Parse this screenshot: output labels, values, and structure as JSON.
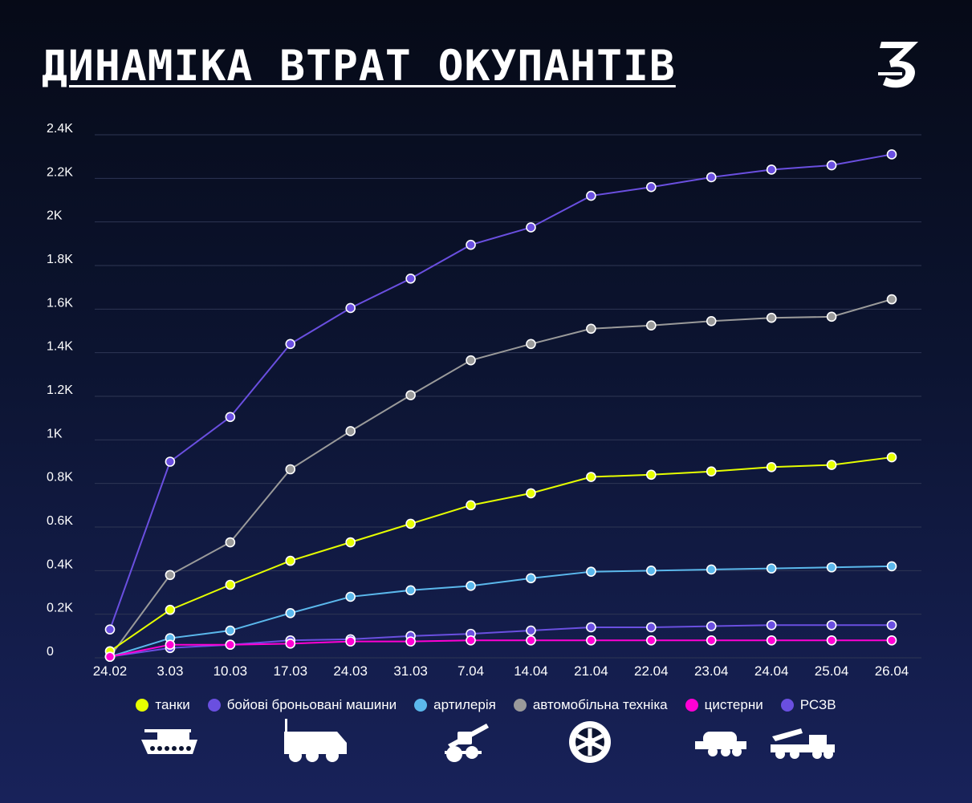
{
  "header": {
    "title": "ДИНАМІКА ВТРАТ ОКУПАНТІВ",
    "logo_icon": "logo-3-icon"
  },
  "colors": {
    "tanks": "#e6ff00",
    "afv": "#6a4fe0",
    "artillery": "#5bb8ec",
    "vehicles": "#9a9a9a",
    "tankers": "#ff00d4",
    "mlrs": "#6a4fe0",
    "grid": "#2e3654"
  },
  "legend": {
    "items": [
      {
        "label": "танки",
        "color": "#e6ff00"
      },
      {
        "label": "бойові броньовані машини",
        "color": "#6a4fe0"
      },
      {
        "label": "артилерія",
        "color": "#5bb8ec"
      },
      {
        "label": "автомобільна техніка",
        "color": "#9a9a9a"
      },
      {
        "label": "цистерни",
        "color": "#ff00d4"
      },
      {
        "label": "РСЗВ",
        "color": "#6a4fe0"
      }
    ]
  },
  "icons": [
    "tank-icon",
    "armored-vehicle-icon",
    "artillery-icon",
    "wheel-icon",
    "tanker-truck-icon",
    "mlrs-icon"
  ],
  "chart_data": {
    "type": "line",
    "categories": [
      "24.02",
      "3.03",
      "10.03",
      "17.03",
      "24.03",
      "31.03",
      "7.04",
      "14.04",
      "21.04",
      "22.04",
      "23.04",
      "24.04",
      "25.04",
      "26.04"
    ],
    "ylim": [
      0,
      2400
    ],
    "yticks": [
      0,
      200,
      400,
      600,
      800,
      1000,
      1200,
      1400,
      1600,
      1800,
      2000,
      2200,
      2400
    ],
    "ytick_labels": [
      "0",
      "0.2K",
      "0.4K",
      "0.6K",
      "0.8K",
      "1K",
      "1.2K",
      "1.4K",
      "1.6K",
      "1.8K",
      "2K",
      "2.2K",
      "2.4K"
    ],
    "grid": true,
    "legend_position": "bottom",
    "series": [
      {
        "name": "бойові броньовані машини",
        "color": "#6a4fe0",
        "values": [
          130,
          900,
          1105,
          1440,
          1605,
          1740,
          1895,
          1975,
          2120,
          2160,
          2205,
          2240,
          2260,
          2310
        ]
      },
      {
        "name": "автомобільна техніка",
        "color": "#9a9a9a",
        "values": [
          5,
          380,
          530,
          865,
          1040,
          1205,
          1365,
          1440,
          1510,
          1525,
          1545,
          1560,
          1565,
          1645
        ]
      },
      {
        "name": "танки",
        "color": "#e6ff00",
        "values": [
          30,
          220,
          335,
          445,
          530,
          615,
          700,
          755,
          830,
          840,
          855,
          875,
          885,
          920
        ]
      },
      {
        "name": "артилерія",
        "color": "#5bb8ec",
        "values": [
          5,
          90,
          125,
          205,
          280,
          310,
          330,
          365,
          395,
          400,
          405,
          410,
          415,
          420
        ]
      },
      {
        "name": "РСЗВ",
        "color": "#6a4fe0",
        "values": [
          5,
          45,
          60,
          80,
          85,
          100,
          110,
          125,
          140,
          140,
          145,
          150,
          150,
          150
        ]
      },
      {
        "name": "цистерни",
        "color": "#ff00d4",
        "values": [
          5,
          60,
          60,
          65,
          75,
          75,
          80,
          80,
          80,
          80,
          80,
          80,
          80,
          80
        ]
      }
    ]
  }
}
